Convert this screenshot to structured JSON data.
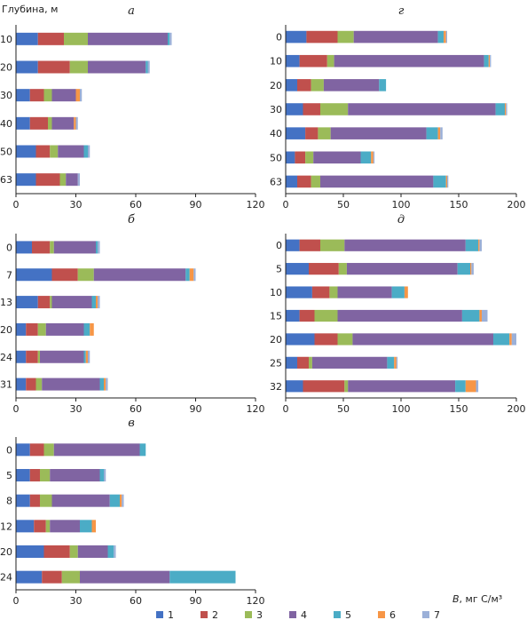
{
  "page": {
    "ylabel": "Глубина, м",
    "xlabel_var": "B",
    "xlabel_unit": ", мг С/м³"
  },
  "colors": [
    "#4472c4",
    "#c0504d",
    "#9bbb59",
    "#8064a2",
    "#4bacc6",
    "#f79646",
    "#9bb0d8"
  ],
  "legend": [
    "1",
    "2",
    "3",
    "4",
    "5",
    "6",
    "7"
  ],
  "chart_data": [
    {
      "type": "bar",
      "orientation": "horizontal",
      "stacked": true,
      "panel": "а",
      "xlim": [
        0,
        120
      ],
      "xticks": [
        0,
        30,
        60,
        90,
        120
      ],
      "categories": [
        "10",
        "20",
        "30",
        "40",
        "50",
        "63"
      ],
      "values": [
        [
          11,
          13,
          12,
          40,
          1,
          0,
          1
        ],
        [
          11,
          16,
          9,
          29,
          1,
          0,
          1
        ],
        [
          7,
          7,
          4,
          12,
          0,
          2,
          1
        ],
        [
          7,
          9,
          2,
          11,
          0,
          1,
          1
        ],
        [
          10,
          7,
          4,
          13,
          2,
          0,
          1
        ],
        [
          10,
          12,
          3,
          6,
          0,
          0,
          1
        ]
      ]
    },
    {
      "type": "bar",
      "orientation": "horizontal",
      "stacked": true,
      "panel": "г",
      "xlim": [
        0,
        200
      ],
      "xticks": [
        0,
        50,
        100,
        150,
        200
      ],
      "categories": [
        "0",
        "10",
        "20",
        "30",
        "40",
        "50",
        "63"
      ],
      "values": [
        [
          18,
          27,
          14,
          73,
          5,
          2,
          1
        ],
        [
          12,
          24,
          6,
          130,
          4,
          1,
          1
        ],
        [
          10,
          12,
          11,
          48,
          6,
          0,
          0
        ],
        [
          15,
          15,
          24,
          128,
          8,
          1,
          1
        ],
        [
          17,
          11,
          11,
          83,
          10,
          2,
          2
        ],
        [
          8,
          9,
          7,
          41,
          9,
          2,
          1
        ],
        [
          10,
          12,
          8,
          98,
          11,
          1,
          1
        ]
      ]
    },
    {
      "type": "bar",
      "orientation": "horizontal",
      "stacked": true,
      "panel": "б",
      "xlim": [
        0,
        120
      ],
      "xticks": [
        0,
        30,
        60,
        90,
        120
      ],
      "categories": [
        "0",
        "7",
        "13",
        "20",
        "24",
        "31"
      ],
      "values": [
        [
          8,
          9,
          2,
          21,
          1,
          0,
          1
        ],
        [
          18,
          13,
          8,
          46,
          2,
          2,
          1
        ],
        [
          11,
          6,
          1,
          20,
          2,
          1,
          1
        ],
        [
          5,
          6,
          4,
          19,
          3,
          2,
          0
        ],
        [
          5,
          6,
          1,
          22,
          1,
          1,
          1
        ],
        [
          5,
          5,
          3,
          29,
          2,
          1,
          1
        ]
      ]
    },
    {
      "type": "bar",
      "orientation": "horizontal",
      "stacked": true,
      "panel": "д",
      "xlim": [
        0,
        200
      ],
      "xticks": [
        0,
        50,
        100,
        150,
        200
      ],
      "categories": [
        "0",
        "5",
        "10",
        "15",
        "20",
        "25",
        "32"
      ],
      "values": [
        [
          12,
          18,
          21,
          105,
          11,
          1,
          2
        ],
        [
          20,
          26,
          7,
          96,
          11,
          1,
          2
        ],
        [
          23,
          15,
          7,
          47,
          11,
          3,
          0
        ],
        [
          12,
          13,
          20,
          108,
          15,
          2,
          5
        ],
        [
          25,
          20,
          13,
          122,
          14,
          2,
          4
        ],
        [
          10,
          10,
          3,
          65,
          6,
          2,
          1
        ],
        [
          15,
          36,
          3,
          93,
          9,
          9,
          2
        ]
      ]
    },
    {
      "type": "bar",
      "orientation": "horizontal",
      "stacked": true,
      "panel": "в",
      "xlim": [
        0,
        120
      ],
      "xticks": [
        0,
        30,
        60,
        90,
        120
      ],
      "categories": [
        "0",
        "5",
        "8",
        "12",
        "20",
        "24"
      ],
      "values": [
        [
          7,
          7,
          5,
          43,
          3,
          0,
          0
        ],
        [
          7,
          5,
          5,
          25,
          2,
          0,
          1
        ],
        [
          7,
          5,
          6,
          29,
          5,
          1,
          1
        ],
        [
          9,
          6,
          2,
          15,
          6,
          2,
          0
        ],
        [
          14,
          13,
          4,
          15,
          3,
          0,
          1
        ],
        [
          13,
          10,
          9,
          45,
          33,
          0,
          0
        ]
      ]
    }
  ]
}
